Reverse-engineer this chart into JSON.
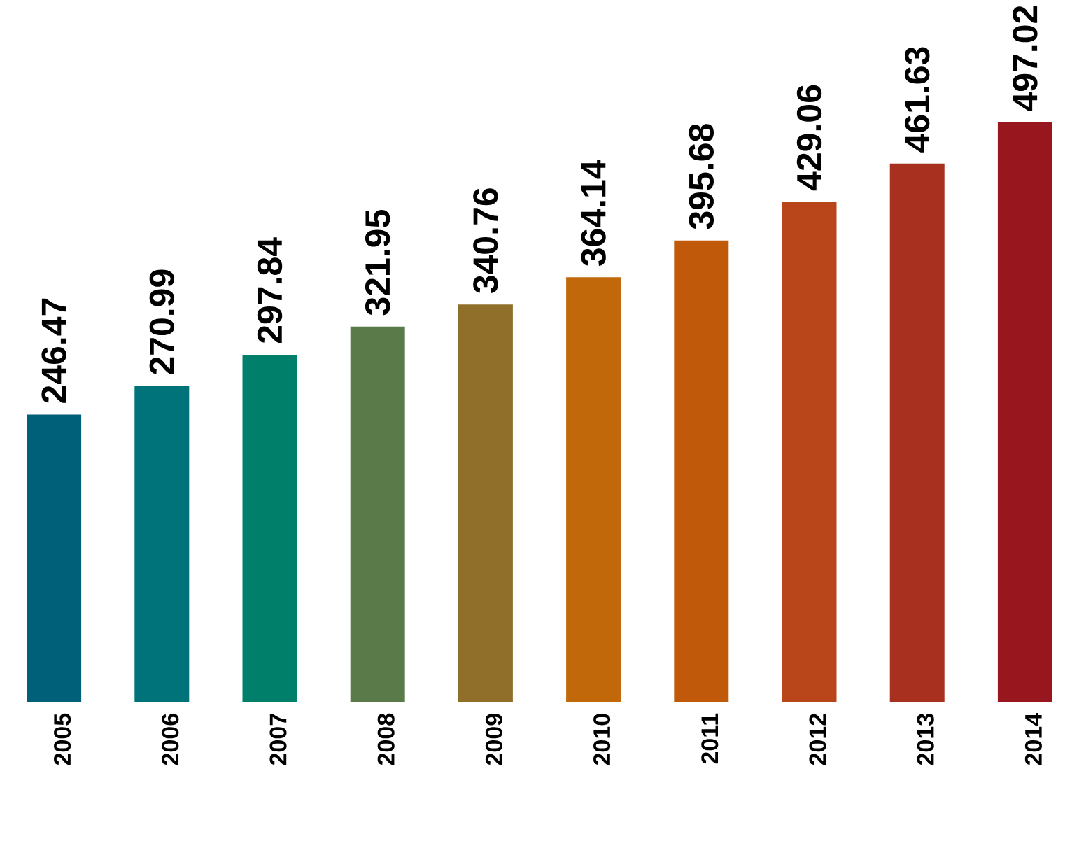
{
  "chart_data": {
    "type": "bar",
    "categories": [
      "2005",
      "2006",
      "2007",
      "2008",
      "2009",
      "2010",
      "2011",
      "2012",
      "2013",
      "2014"
    ],
    "values": [
      246.47,
      270.99,
      297.84,
      321.95,
      340.76,
      364.14,
      395.68,
      429.06,
      461.63,
      497.02
    ],
    "colors": [
      "#00607a",
      "#00737a",
      "#007f6a",
      "#5a7a4a",
      "#8f6f2a",
      "#c0680a",
      "#c05a0a",
      "#b8461a",
      "#a8301e",
      "#98161e"
    ],
    "data_labels": true
  }
}
